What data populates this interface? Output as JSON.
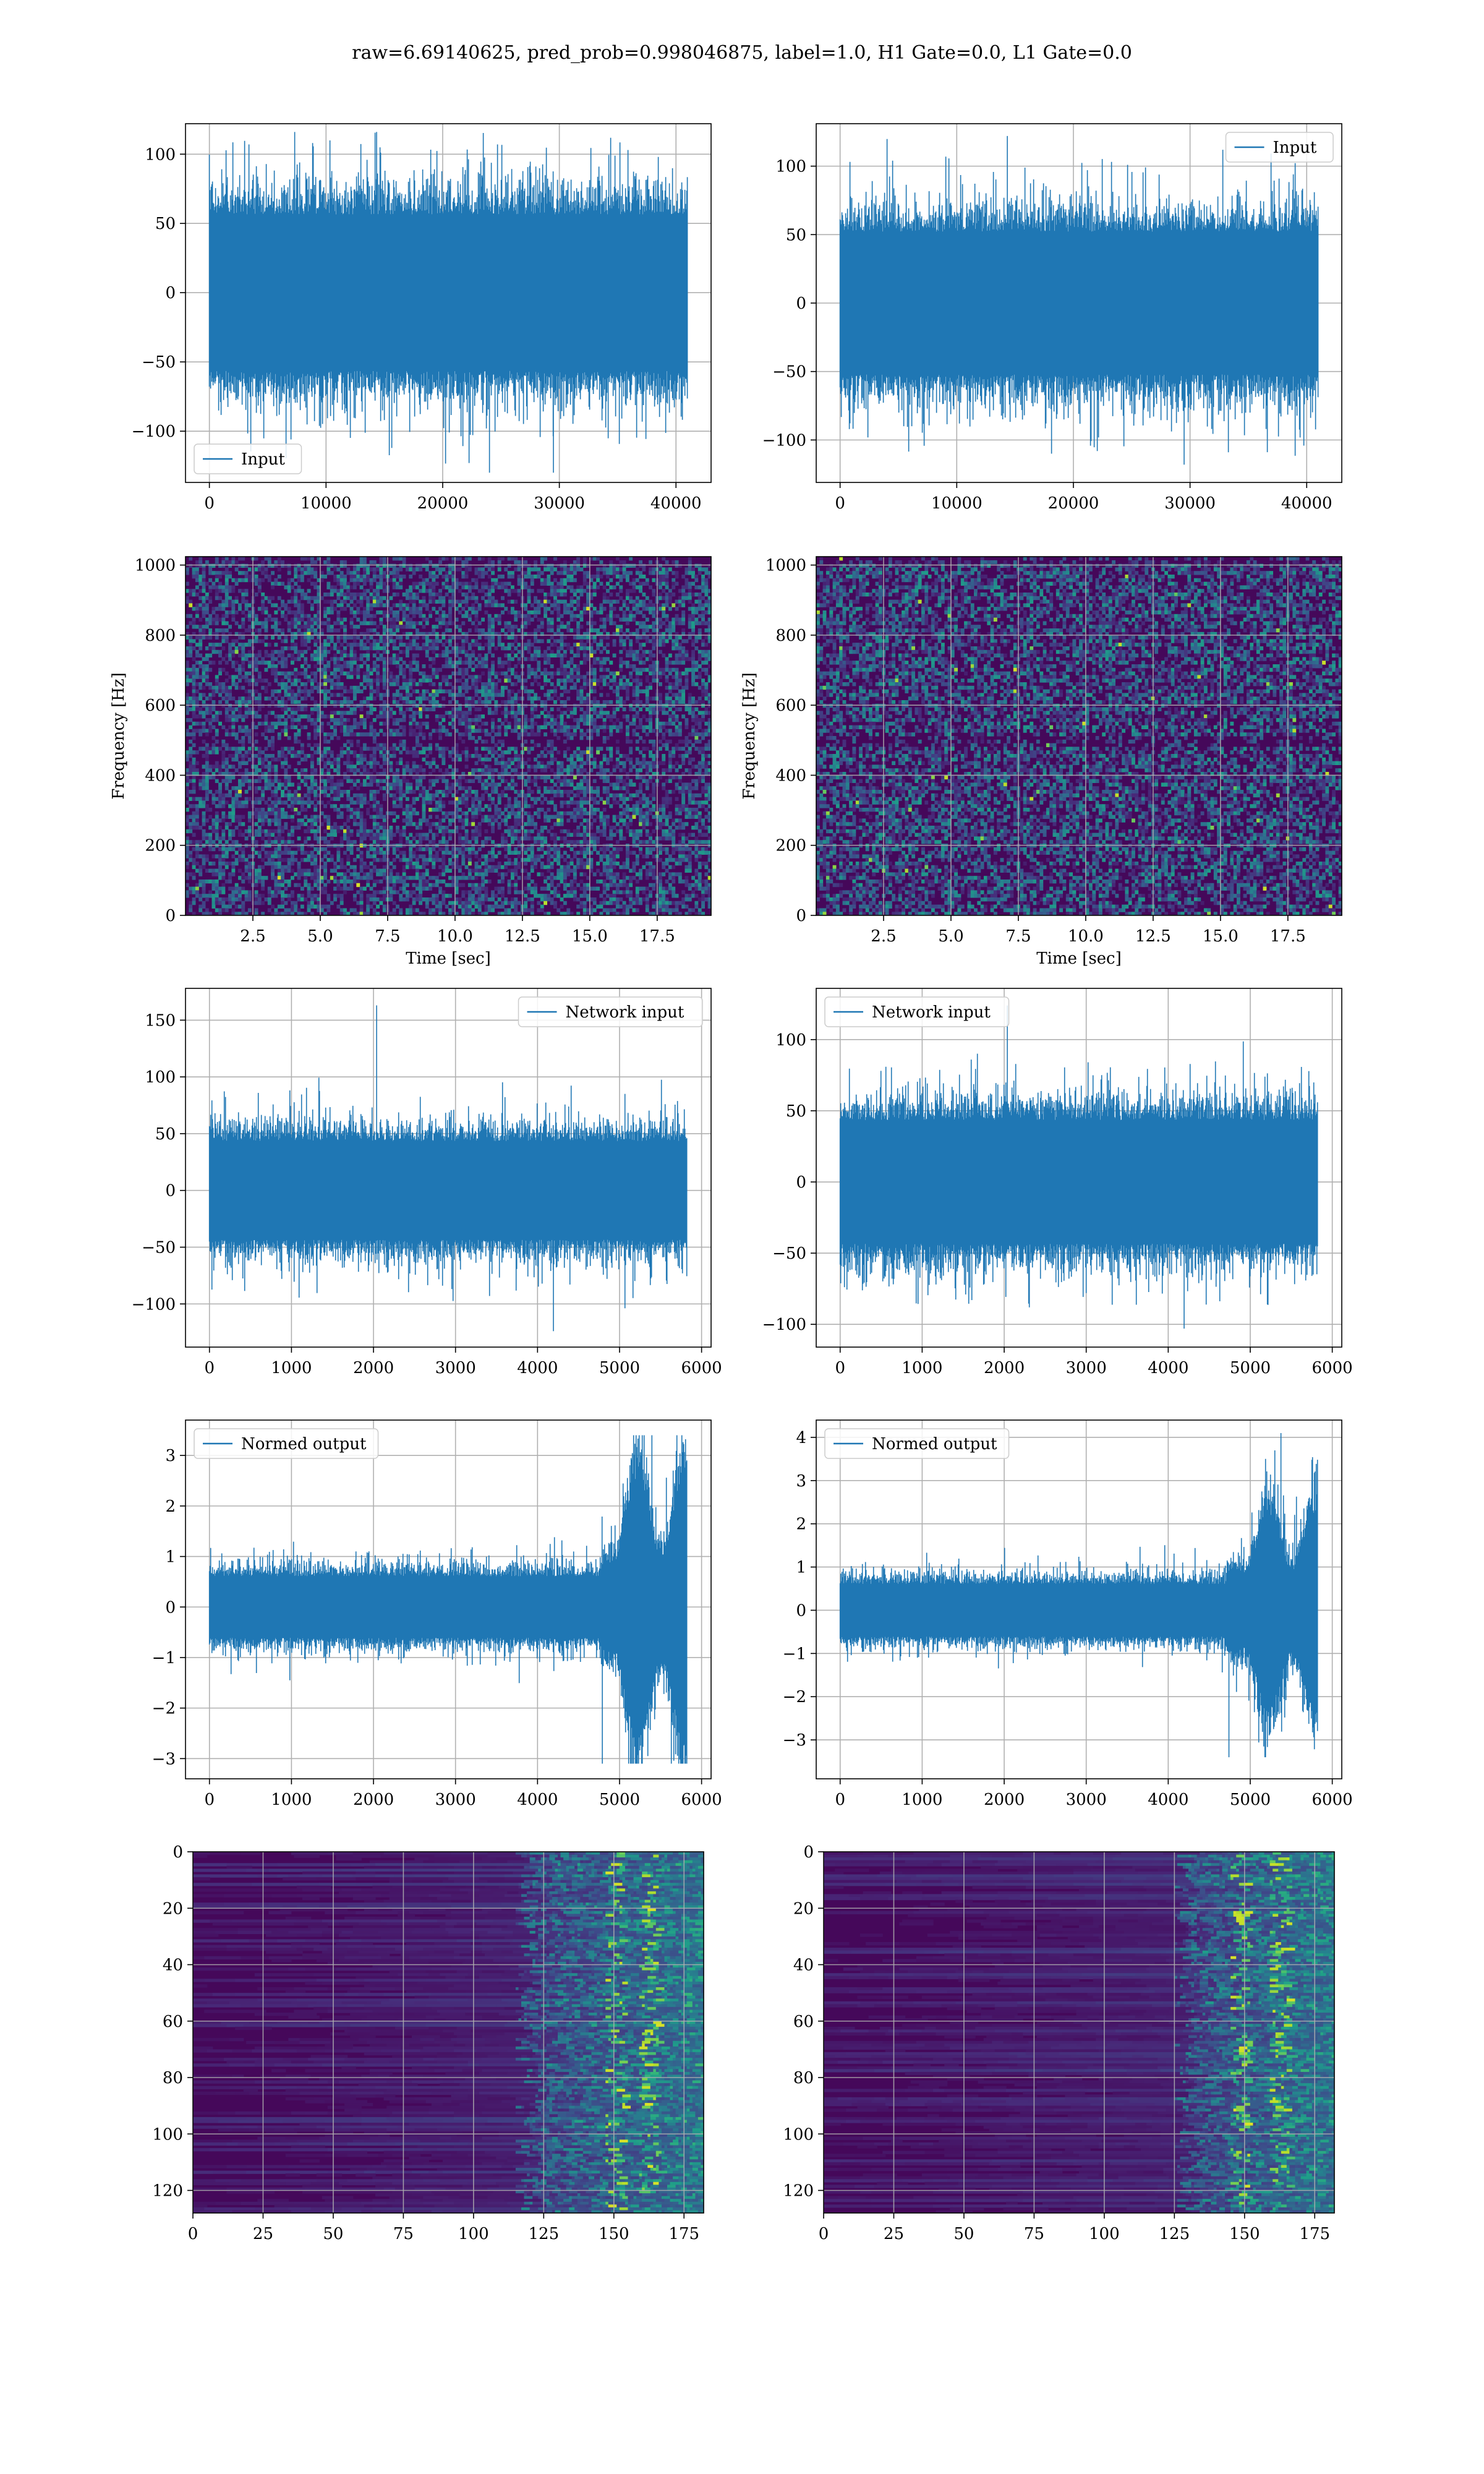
{
  "figure": {
    "suptitle": "raw=6.69140625, pred_prob=0.998046875, label=1.0, H1 Gate=0.0, L1 Gate=0.0",
    "line_color": "#1f77b4",
    "grid_color": "#b0b0b0"
  },
  "chart_data": [
    {
      "id": "h1-input",
      "type": "line",
      "title": "",
      "xlabel": "",
      "ylabel": "",
      "series": [
        {
          "name": "Input"
        }
      ],
      "legend": "lower-left",
      "xlim": [
        -2048,
        43008
      ],
      "ylim": [
        -137,
        122
      ],
      "xticks": [
        0,
        10000,
        20000,
        30000,
        40000
      ],
      "xtick_labels": [
        "0",
        "10000",
        "20000",
        "30000",
        "40000"
      ],
      "yticks": [
        -100,
        -50,
        0,
        50,
        100
      ],
      "ytick_labels": [
        "−100",
        "−50",
        "0",
        "50",
        "100"
      ],
      "grid": true,
      "n_points": 40960,
      "signal_envelope": {
        "typical_amplitude": 65,
        "max": 116,
        "min": -130
      }
    },
    {
      "id": "l1-input",
      "type": "line",
      "title": "",
      "xlabel": "",
      "ylabel": "",
      "series": [
        {
          "name": "Input"
        }
      ],
      "legend": "upper-right",
      "xlim": [
        -2048,
        43008
      ],
      "ylim": [
        -131,
        131
      ],
      "xticks": [
        0,
        10000,
        20000,
        30000,
        40000
      ],
      "xtick_labels": [
        "0",
        "10000",
        "20000",
        "30000",
        "40000"
      ],
      "yticks": [
        -100,
        -50,
        0,
        50,
        100
      ],
      "ytick_labels": [
        "−100",
        "−50",
        "0",
        "50",
        "100"
      ],
      "grid": true,
      "n_points": 40960,
      "signal_envelope": {
        "typical_amplitude": 60,
        "max": 122,
        "min": -118
      }
    },
    {
      "id": "h1-spectrogram",
      "type": "heatmap",
      "title": "",
      "xlabel": "Time [sec]",
      "ylabel": "Frequency [Hz]",
      "colormap": "viridis",
      "xlim": [
        0,
        19.5
      ],
      "ylim": [
        0,
        1024
      ],
      "xticks": [
        2.5,
        5.0,
        7.5,
        10.0,
        12.5,
        15.0,
        17.5
      ],
      "xtick_labels": [
        "2.5",
        "5.0",
        "7.5",
        "10.0",
        "12.5",
        "15.0",
        "17.5"
      ],
      "yticks": [
        0,
        200,
        400,
        600,
        800,
        1000
      ],
      "ytick_labels": [
        "0",
        "200",
        "400",
        "600",
        "800",
        "1000"
      ],
      "grid": true
    },
    {
      "id": "l1-spectrogram",
      "type": "heatmap",
      "title": "",
      "xlabel": "Time [sec]",
      "ylabel": "Frequency [Hz]",
      "colormap": "viridis",
      "xlim": [
        0,
        19.5
      ],
      "ylim": [
        0,
        1024
      ],
      "xticks": [
        2.5,
        5.0,
        7.5,
        10.0,
        12.5,
        15.0,
        17.5
      ],
      "xtick_labels": [
        "2.5",
        "5.0",
        "7.5",
        "10.0",
        "12.5",
        "15.0",
        "17.5"
      ],
      "yticks": [
        0,
        200,
        400,
        600,
        800,
        1000
      ],
      "ytick_labels": [
        "0",
        "200",
        "400",
        "600",
        "800",
        "1000"
      ],
      "grid": true
    },
    {
      "id": "h1-network-input",
      "type": "line",
      "title": "",
      "xlabel": "",
      "ylabel": "",
      "series": [
        {
          "name": "Network input"
        }
      ],
      "legend": "upper-right",
      "xlim": [
        -292,
        6116
      ],
      "ylim": [
        -138,
        178
      ],
      "xticks": [
        0,
        1000,
        2000,
        3000,
        4000,
        5000,
        6000
      ],
      "xtick_labels": [
        "0",
        "1000",
        "2000",
        "3000",
        "4000",
        "5000",
        "6000"
      ],
      "yticks": [
        -100,
        -50,
        0,
        50,
        100,
        150
      ],
      "ytick_labels": [
        "−100",
        "−50",
        "0",
        "50",
        "100",
        "150"
      ],
      "grid": true,
      "n_points": 5824,
      "signal_envelope": {
        "typical_amplitude": 50,
        "max": 163,
        "min": -124
      }
    },
    {
      "id": "l1-network-input",
      "type": "line",
      "title": "",
      "xlabel": "",
      "ylabel": "",
      "series": [
        {
          "name": "Network input"
        }
      ],
      "legend": "upper-left",
      "xlim": [
        -292,
        6116
      ],
      "ylim": [
        -116,
        136
      ],
      "xticks": [
        0,
        1000,
        2000,
        3000,
        4000,
        5000,
        6000
      ],
      "xtick_labels": [
        "0",
        "1000",
        "2000",
        "3000",
        "4000",
        "5000",
        "6000"
      ],
      "yticks": [
        -100,
        -50,
        0,
        50,
        100
      ],
      "ytick_labels": [
        "−100",
        "−50",
        "0",
        "50",
        "100"
      ],
      "grid": true,
      "n_points": 5824,
      "signal_envelope": {
        "typical_amplitude": 50,
        "max": 124,
        "min": -103
      }
    },
    {
      "id": "h1-normed-output",
      "type": "line",
      "title": "",
      "xlabel": "",
      "ylabel": "",
      "series": [
        {
          "name": "Normed output"
        }
      ],
      "legend": "upper-left",
      "xlim": [
        -292,
        6116
      ],
      "ylim": [
        -3.4,
        3.7
      ],
      "xticks": [
        0,
        1000,
        2000,
        3000,
        4000,
        5000,
        6000
      ],
      "xtick_labels": [
        "0",
        "1000",
        "2000",
        "3000",
        "4000",
        "5000",
        "6000"
      ],
      "yticks": [
        -3,
        -2,
        -1,
        0,
        1,
        2,
        3
      ],
      "ytick_labels": [
        "−3",
        "−2",
        "−1",
        "0",
        "1",
        "2",
        "3"
      ],
      "grid": true,
      "n_points": 5824,
      "signal_envelope": {
        "typical_amplitude": 0.7,
        "burst_start": 4750,
        "burst_end": 5824,
        "burst_amplitude": 2.4,
        "max": 3.4,
        "min": -3.1
      }
    },
    {
      "id": "l1-normed-output",
      "type": "line",
      "title": "",
      "xlabel": "",
      "ylabel": "",
      "series": [
        {
          "name": "Normed output"
        }
      ],
      "legend": "upper-left",
      "xlim": [
        -292,
        6116
      ],
      "ylim": [
        -3.9,
        4.4
      ],
      "xticks": [
        0,
        1000,
        2000,
        3000,
        4000,
        5000,
        6000
      ],
      "xtick_labels": [
        "0",
        "1000",
        "2000",
        "3000",
        "4000",
        "5000",
        "6000"
      ],
      "yticks": [
        -3,
        -2,
        -1,
        0,
        1,
        2,
        3,
        4
      ],
      "ytick_labels": [
        "−3",
        "−2",
        "−1",
        "0",
        "1",
        "2",
        "3",
        "4"
      ],
      "grid": true,
      "n_points": 5824,
      "signal_envelope": {
        "typical_amplitude": 0.7,
        "burst_start": 4700,
        "burst_end": 5824,
        "burst_amplitude": 2.0,
        "max": 4.1,
        "min": -3.4
      }
    },
    {
      "id": "h1-feature-map",
      "type": "heatmap",
      "title": "",
      "xlabel": "",
      "ylabel": "",
      "colormap": "viridis",
      "xlim": [
        0,
        182
      ],
      "ylim": [
        128,
        0
      ],
      "xticks": [
        0,
        25,
        50,
        75,
        100,
        125,
        150,
        175
      ],
      "xtick_labels": [
        "0",
        "25",
        "50",
        "75",
        "100",
        "125",
        "150",
        "175"
      ],
      "yticks": [
        0,
        20,
        40,
        60,
        80,
        100,
        120
      ],
      "ytick_labels": [
        "0",
        "20",
        "40",
        "60",
        "80",
        "100",
        "120"
      ],
      "grid": true,
      "activity_starts": 115,
      "peak_columns": [
        150,
        162
      ]
    },
    {
      "id": "l1-feature-map",
      "type": "heatmap",
      "title": "",
      "xlabel": "",
      "ylabel": "",
      "colormap": "viridis",
      "xlim": [
        0,
        182
      ],
      "ylim": [
        128,
        0
      ],
      "xticks": [
        0,
        25,
        50,
        75,
        100,
        125,
        150,
        175
      ],
      "xtick_labels": [
        "0",
        "25",
        "50",
        "75",
        "100",
        "125",
        "150",
        "175"
      ],
      "yticks": [
        0,
        20,
        40,
        60,
        80,
        100,
        120
      ],
      "ytick_labels": [
        "0",
        "20",
        "40",
        "60",
        "80",
        "100",
        "120"
      ],
      "grid": true,
      "activity_starts": 125,
      "peak_columns": [
        148,
        162
      ]
    }
  ]
}
